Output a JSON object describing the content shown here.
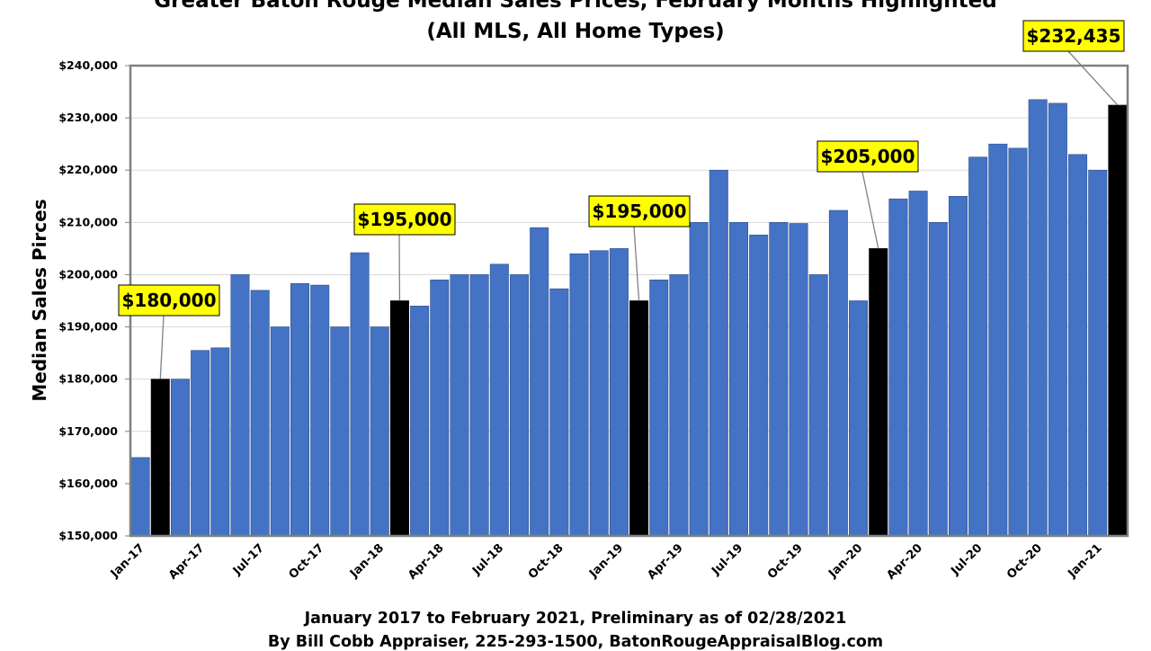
{
  "chart_data": {
    "type": "bar",
    "title": "Greater Baton Rouge Median Sales Prices, February Months Highlighted",
    "subtitle": "(All MLS, All Home Types)",
    "ylabel": "Median Sales Pirces",
    "xlabel": "January 2017 to February 2021, Preliminary as of 02/28/2021",
    "credit": "By Bill Cobb Appraiser, 225-293-1500, BatonRougeAppraisalBlog.com",
    "ylim": [
      150000,
      240000
    ],
    "yticks": [
      150000,
      160000,
      170000,
      180000,
      190000,
      200000,
      210000,
      220000,
      230000,
      240000
    ],
    "ytick_labels": [
      "$150,000",
      "$160,000",
      "$170,000",
      "$180,000",
      "$190,000",
      "$200,000",
      "$210,000",
      "$220,000",
      "$230,000",
      "$240,000"
    ],
    "grid": true,
    "categories": [
      "Jan-17",
      "Feb-17",
      "Mar-17",
      "Apr-17",
      "May-17",
      "Jun-17",
      "Jul-17",
      "Aug-17",
      "Sep-17",
      "Oct-17",
      "Nov-17",
      "Dec-17",
      "Jan-18",
      "Feb-18",
      "Mar-18",
      "Apr-18",
      "May-18",
      "Jun-18",
      "Jul-18",
      "Aug-18",
      "Sep-18",
      "Oct-18",
      "Nov-18",
      "Dec-18",
      "Jan-19",
      "Feb-19",
      "Mar-19",
      "Apr-19",
      "May-19",
      "Jun-19",
      "Jul-19",
      "Aug-19",
      "Sep-19",
      "Oct-19",
      "Nov-19",
      "Dec-19",
      "Jan-20",
      "Feb-20",
      "Mar-20",
      "Apr-20",
      "May-20",
      "Jun-20",
      "Jul-20",
      "Aug-20",
      "Sep-20",
      "Oct-20",
      "Nov-20",
      "Dec-20",
      "Jan-21",
      "Feb-21"
    ],
    "tick_labels": [
      "Jan-17",
      "Apr-17",
      "Jul-17",
      "Oct-17",
      "Jan-18",
      "Apr-18",
      "Jul-18",
      "Oct-18",
      "Jan-19",
      "Apr-19",
      "Jul-19",
      "Oct-19",
      "Jan-20",
      "Apr-20",
      "Jul-20",
      "Oct-20",
      "Jan-21"
    ],
    "values": [
      165000,
      180000,
      180000,
      185500,
      186000,
      200000,
      197000,
      190000,
      198300,
      198000,
      190000,
      204200,
      190000,
      195000,
      194000,
      199000,
      200000,
      200000,
      202000,
      200000,
      209000,
      197300,
      204000,
      204600,
      205000,
      195000,
      199000,
      200000,
      210000,
      220000,
      210000,
      207600,
      210000,
      209800,
      200000,
      212300,
      195000,
      205000,
      214500,
      216000,
      210000,
      215000,
      222500,
      225000,
      224200,
      233500,
      232800,
      223000,
      220000,
      232435
    ],
    "highlighted": [
      "Feb-17",
      "Feb-18",
      "Feb-19",
      "Feb-20",
      "Feb-21"
    ],
    "colors": {
      "bar": "#4472C4",
      "highlight": "#000000",
      "label_bg": "#FFFF00",
      "frame": "#808080",
      "grid": "#D9D9D9"
    },
    "annotations": [
      {
        "category": "Feb-17",
        "text": "$180,000"
      },
      {
        "category": "Feb-18",
        "text": "$195,000"
      },
      {
        "category": "Feb-19",
        "text": "$195,000"
      },
      {
        "category": "Feb-20",
        "text": "$205,000"
      },
      {
        "category": "Feb-21",
        "text": "$232,435"
      }
    ]
  }
}
